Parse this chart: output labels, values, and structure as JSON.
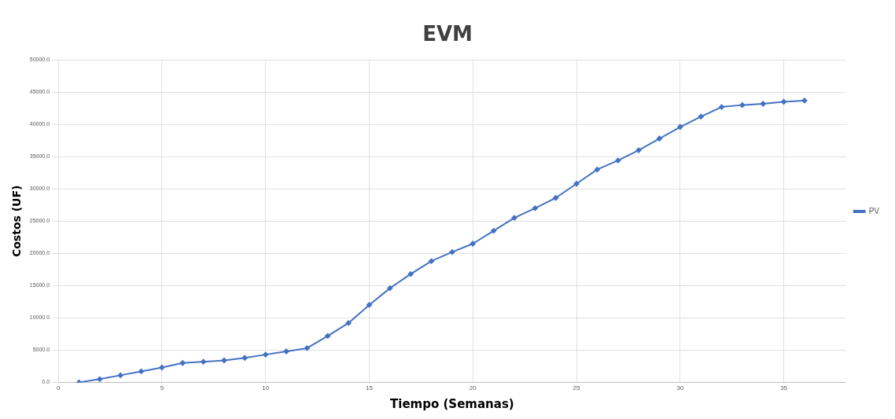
{
  "chart_data": {
    "type": "line",
    "title": "EVM",
    "xlabel": "Tiempo (Semanas)",
    "ylabel": "Costos (UF)",
    "x": [
      1,
      2,
      3,
      4,
      5,
      6,
      7,
      8,
      9,
      10,
      11,
      12,
      13,
      14,
      15,
      16,
      17,
      18,
      19,
      20,
      21,
      22,
      23,
      24,
      25,
      26,
      27,
      28,
      29,
      30,
      31,
      32,
      33,
      34,
      35,
      36
    ],
    "series": [
      {
        "name": "PV",
        "color": "#4472c4",
        "values": [
          0,
          500,
          1100,
          1700,
          2300,
          3000,
          3200,
          3400,
          3800,
          4300,
          4800,
          5300,
          7200,
          9200,
          12000,
          14600,
          16800,
          18800,
          20200,
          21500,
          23500,
          25500,
          27000,
          28600,
          30800,
          33000,
          34400,
          36000,
          37800,
          39600,
          41200,
          42700,
          43000,
          43200,
          43500,
          43700
        ]
      }
    ],
    "xlim": [
      0,
      38
    ],
    "xticks": [
      0,
      5,
      10,
      15,
      20,
      25,
      30,
      35
    ],
    "ylim": [
      0,
      50000
    ],
    "yticks": [
      {
        "value": 0,
        "label": "0.0"
      },
      {
        "value": 5000,
        "label": "5000.0"
      },
      {
        "value": 10000,
        "label": "10000.0"
      },
      {
        "value": 15000,
        "label": "15000.0"
      },
      {
        "value": 20000,
        "label": "20000.0"
      },
      {
        "value": 25000,
        "label": "25000.0"
      },
      {
        "value": 30000,
        "label": "30000.0"
      },
      {
        "value": 35000,
        "label": "35000.0"
      },
      {
        "value": 40000,
        "label": "40000.0"
      },
      {
        "value": 45000,
        "label": "45000.0"
      },
      {
        "value": 50000,
        "label": "50000.0"
      }
    ],
    "grid": true,
    "legend": "right",
    "marker": "diamond",
    "line_style": "solid"
  }
}
